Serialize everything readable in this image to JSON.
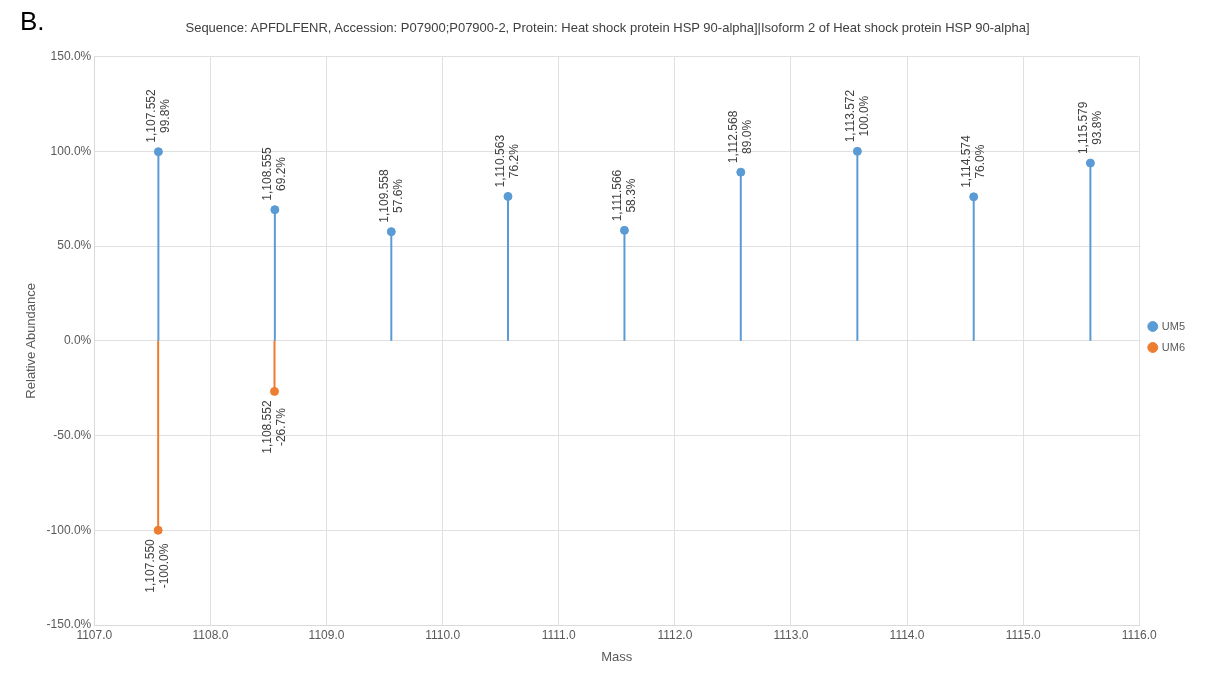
{
  "chart_data": {
    "type": "lollipop",
    "title": "Sequence: APFDLFENR, Accession: P07900;P07900-2, Protein: Heat shock protein HSP 90-alpha]|Isoform 2 of Heat shock protein HSP 90-alpha]",
    "annotations": [
      "B."
    ],
    "xlabel": "Mass",
    "ylabel": "Relative Abundance",
    "xlim": [
      1107,
      1116
    ],
    "xticks": [
      {
        "value": 1107,
        "label": "1107.0"
      },
      {
        "value": 1108,
        "label": "1108.0"
      },
      {
        "value": 1109,
        "label": "1109.0"
      },
      {
        "value": 1110,
        "label": "1110.0"
      },
      {
        "value": 1111,
        "label": "1111.0"
      },
      {
        "value": 1112,
        "label": "1112.0"
      },
      {
        "value": 1113,
        "label": "1113.0"
      },
      {
        "value": 1114,
        "label": "1114.0"
      },
      {
        "value": 1115,
        "label": "1115.0"
      },
      {
        "value": 1116,
        "label": "1116.0"
      }
    ],
    "ylim": [
      -150,
      150
    ],
    "yticks": [
      {
        "value": -150,
        "label": "-150.0%"
      },
      {
        "value": -100,
        "label": "-100.0%"
      },
      {
        "value": -50,
        "label": "-50.0%"
      },
      {
        "value": 0,
        "label": "0.0%"
      },
      {
        "value": 50,
        "label": "50.0%"
      },
      {
        "value": 100,
        "label": "100.0%"
      },
      {
        "value": 150,
        "label": "150.0%"
      }
    ],
    "grid": true,
    "legend": "right",
    "marker": "circle",
    "series": [
      {
        "name": "UM5",
        "color": "#5b9bd5",
        "x": [
          1107.552,
          1108.555,
          1109.558,
          1110.563,
          1111.566,
          1112.568,
          1113.572,
          1114.574,
          1115.579
        ],
        "values": [
          99.8,
          69.2,
          57.6,
          76.2,
          58.3,
          89.0,
          100.0,
          76.0,
          93.8
        ],
        "value_labels": [
          "1,107.552\n99.8%",
          "1,108.555\n69.2%",
          "1,109.558\n57.6%",
          "1,110.563\n76.2%",
          "1,111.566\n58.3%",
          "1,112.568\n89.0%",
          "1,113.572\n100.0%",
          "1,114.574\n76.0%",
          "1,115.579\n93.8%"
        ]
      },
      {
        "name": "UM6",
        "color": "#ed7d31",
        "x": [
          1107.55,
          1108.552
        ],
        "values": [
          -100,
          -26.7
        ],
        "value_labels": [
          "1,107.550\n-100.0%",
          "1,108.552\n-26.7%"
        ]
      }
    ]
  }
}
